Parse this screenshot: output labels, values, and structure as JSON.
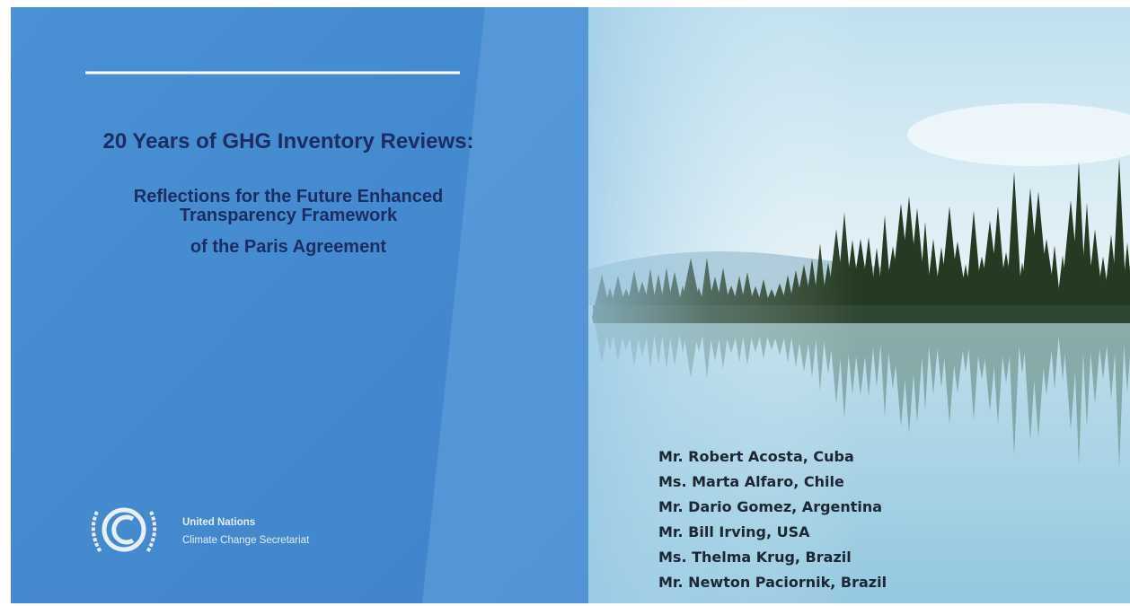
{
  "slide": {
    "title": "20 Years of GHG Inventory Reviews:",
    "subtitle_lines": [
      "Reflections for the Future Enhanced",
      "Transparency Framework",
      "of the Paris Agreement"
    ],
    "organization": {
      "name": "United Nations",
      "unit": "Climate Change Secretariat"
    },
    "presenters": [
      "Mr. Robert Acosta, Cuba",
      "Ms. Marta Alfaro, Chile",
      "Mr. Dario Gomez, Argentina",
      "Mr. Bill Irving, USA",
      "Ms. Thelma Krug, Brazil",
      "Mr. Newton Paciornik, Brazil"
    ]
  }
}
